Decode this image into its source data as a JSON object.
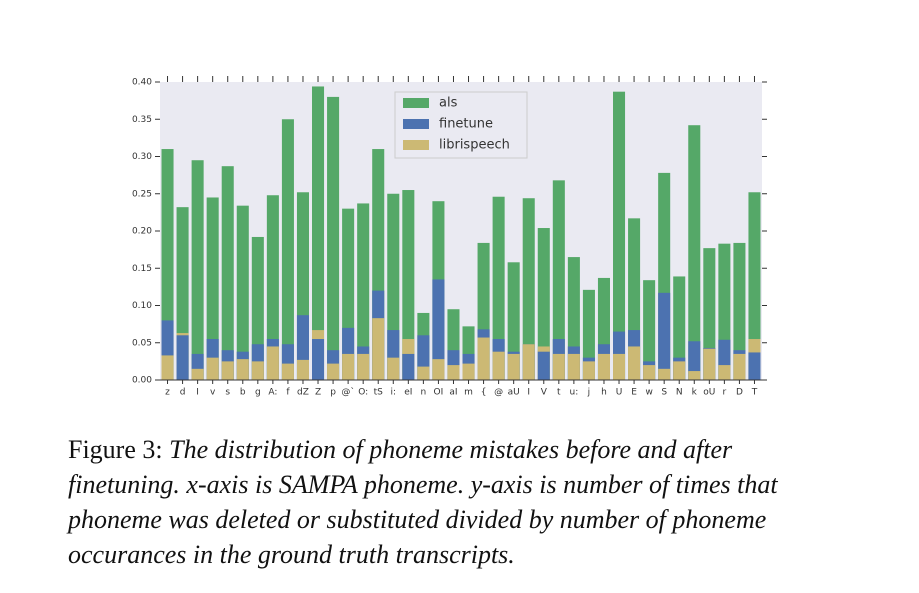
{
  "chart_data": {
    "type": "bar",
    "categories": [
      "z",
      "d",
      "I",
      "v",
      "s",
      "b",
      "g",
      "A:",
      "f",
      "dZ",
      "Z",
      "p",
      "@`",
      "O:",
      "tS",
      "i:",
      "eI",
      "n",
      "OI",
      "aI",
      "m",
      "{",
      "@",
      "aU",
      "I",
      "V",
      "t",
      "u:",
      "j",
      "h",
      "U",
      "E",
      "w",
      "S",
      "N",
      "k",
      "oU",
      "r",
      "D",
      "T"
    ],
    "series": [
      {
        "name": "als",
        "color": "#55a868",
        "values": [
          0.31,
          0.232,
          0.295,
          0.245,
          0.287,
          0.234,
          0.192,
          0.248,
          0.35,
          0.252,
          0.394,
          0.38,
          0.23,
          0.237,
          0.31,
          0.25,
          0.255,
          0.09,
          0.24,
          0.095,
          0.072,
          0.184,
          0.246,
          0.158,
          0.244,
          0.204,
          0.268,
          0.165,
          0.121,
          0.137,
          0.387,
          0.217,
          0.134,
          0.278,
          0.139,
          0.342,
          0.177,
          0.183,
          0.184,
          0.252
        ]
      },
      {
        "name": "finetune",
        "color": "#4c72b0",
        "values": [
          0.08,
          0.06,
          0.035,
          0.055,
          0.04,
          0.038,
          0.048,
          0.055,
          0.048,
          0.087,
          0.055,
          0.04,
          0.07,
          0.045,
          0.12,
          0.067,
          0.035,
          0.06,
          0.135,
          0.04,
          0.035,
          0.068,
          0.055,
          0.038,
          0.048,
          0.038,
          0.055,
          0.045,
          0.03,
          0.048,
          0.065,
          0.067,
          0.025,
          0.117,
          0.03,
          0.052,
          0.043,
          0.054,
          0.04,
          0.037
        ]
      },
      {
        "name": "librispeech",
        "color": "#ccb974",
        "values": [
          0.033,
          0.063,
          0.015,
          0.03,
          0.025,
          0.028,
          0.025,
          0.045,
          0.022,
          0.027,
          0.067,
          0.022,
          0.035,
          0.035,
          0.083,
          0.03,
          0.055,
          0.018,
          0.028,
          0.02,
          0.022,
          0.057,
          0.038,
          0.035,
          0.048,
          0.045,
          0.035,
          0.035,
          0.025,
          0.035,
          0.035,
          0.045,
          0.02,
          0.015,
          0.025,
          0.012,
          0.042,
          0.02,
          0.035,
          0.055
        ]
      }
    ],
    "ylim": [
      0,
      0.4
    ],
    "yticks": [
      {
        "value": 0,
        "label": "0.00"
      },
      {
        "value": 0.05,
        "label": "0.05"
      },
      {
        "value": 0.1,
        "label": "0.10"
      },
      {
        "value": 0.15,
        "label": "0.15"
      },
      {
        "value": 0.2,
        "label": "0.20"
      },
      {
        "value": 0.25,
        "label": "0.25"
      },
      {
        "value": 0.3,
        "label": "0.30"
      },
      {
        "value": 0.35,
        "label": "0.35"
      },
      {
        "value": 0.4,
        "label": "0.40"
      }
    ],
    "legend": "upper center",
    "caption_label": "Figure 3:",
    "caption": "The distribution of phoneme mistakes before and after finetuning. x-axis is SAMPA phoneme. y-axis is number of times that phoneme was deleted or substituted divided by number of phoneme occurances in the ground truth transcripts."
  }
}
